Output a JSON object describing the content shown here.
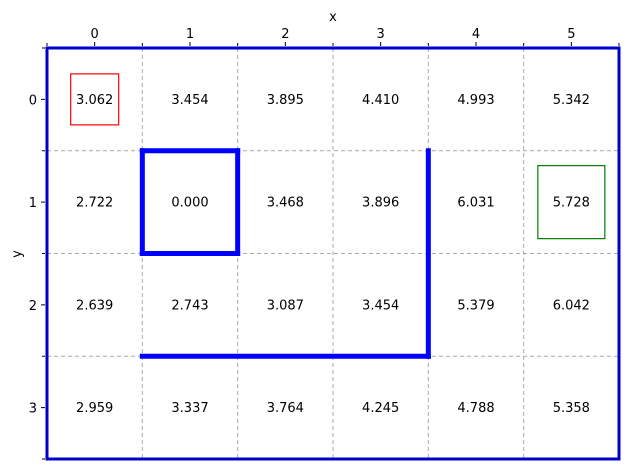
{
  "chart_data": {
    "type": "heatmap",
    "xlabel": "x",
    "ylabel": "y",
    "x_ticks": [
      "0",
      "1",
      "2",
      "3",
      "4",
      "5"
    ],
    "y_ticks": [
      "0",
      "1",
      "2",
      "3"
    ],
    "grid": true,
    "x_axis_position": "top",
    "y_axis_inverted": true,
    "rows": [
      [
        "3.062",
        "3.454",
        "3.895",
        "4.410",
        "4.993",
        "5.342"
      ],
      [
        "2.722",
        "0.000",
        "3.468",
        "3.896",
        "6.031",
        "5.728"
      ],
      [
        "2.639",
        "2.743",
        "3.087",
        "3.454",
        "5.379",
        "6.042"
      ],
      [
        "2.959",
        "3.337",
        "3.764",
        "4.245",
        "4.788",
        "5.358"
      ]
    ],
    "walls": [
      {
        "from": [
          0.5,
          0.5
        ],
        "to": [
          1.5,
          0.5
        ]
      },
      {
        "from": [
          1.5,
          0.5
        ],
        "to": [
          1.5,
          1.5
        ]
      },
      {
        "from": [
          1.5,
          1.5
        ],
        "to": [
          0.5,
          1.5
        ]
      },
      {
        "from": [
          0.5,
          1.5
        ],
        "to": [
          0.5,
          0.5
        ]
      },
      {
        "from": [
          0.5,
          2.5
        ],
        "to": [
          3.5,
          2.5
        ]
      },
      {
        "from": [
          3.5,
          2.5
        ],
        "to": [
          3.5,
          0.5
        ]
      }
    ],
    "highlights": [
      {
        "cell": [
          0,
          0
        ],
        "color": "#ff0000",
        "role": "start"
      },
      {
        "cell": [
          5,
          1
        ],
        "color": "#008000",
        "role": "goal"
      }
    ],
    "colors": {
      "wall": "#0000ff",
      "frame": "#0000cc",
      "grid": "#aaaaaa"
    }
  }
}
